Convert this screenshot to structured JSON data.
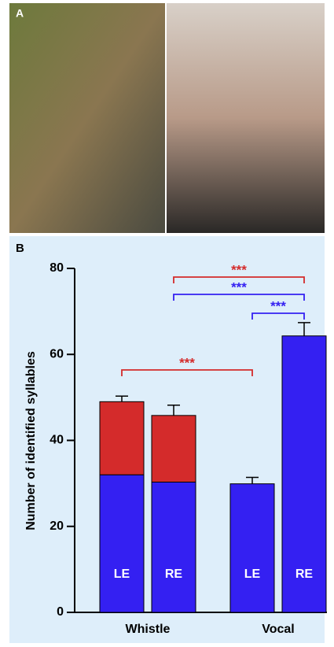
{
  "panel_labels": [
    "A",
    "B"
  ],
  "chart_data": {
    "type": "bar",
    "stacked": true,
    "ylabel": "Number of identified syllables",
    "categories": [
      "LE",
      "RE",
      "LE",
      "RE"
    ],
    "groups": [
      "Whistle",
      "Vocal"
    ],
    "series": [
      {
        "color": "#3420f2",
        "values": [
          32,
          30.3,
          29.9,
          64.3
        ],
        "errors": [
          0.7,
          0.5,
          1.5,
          3.1
        ]
      },
      {
        "color": "#d42b2b",
        "values": [
          17,
          15.5,
          null,
          null
        ],
        "errors": [
          1.3,
          2.4,
          null,
          null
        ]
      }
    ],
    "ylim": [
      0,
      80
    ],
    "yticks": [
      0,
      20,
      40,
      60,
      80
    ],
    "annotations": [
      {
        "text": "***",
        "color": "#d42b2b",
        "from": 1,
        "to": 3
      },
      {
        "text": "***",
        "color": "#3420f2",
        "from": 1,
        "to": 3
      },
      {
        "text": "***",
        "color": "#3420f2",
        "from": 2,
        "to": 3
      },
      {
        "text": "***",
        "color": "#d42b2b",
        "from": 0,
        "to": 2
      }
    ]
  }
}
